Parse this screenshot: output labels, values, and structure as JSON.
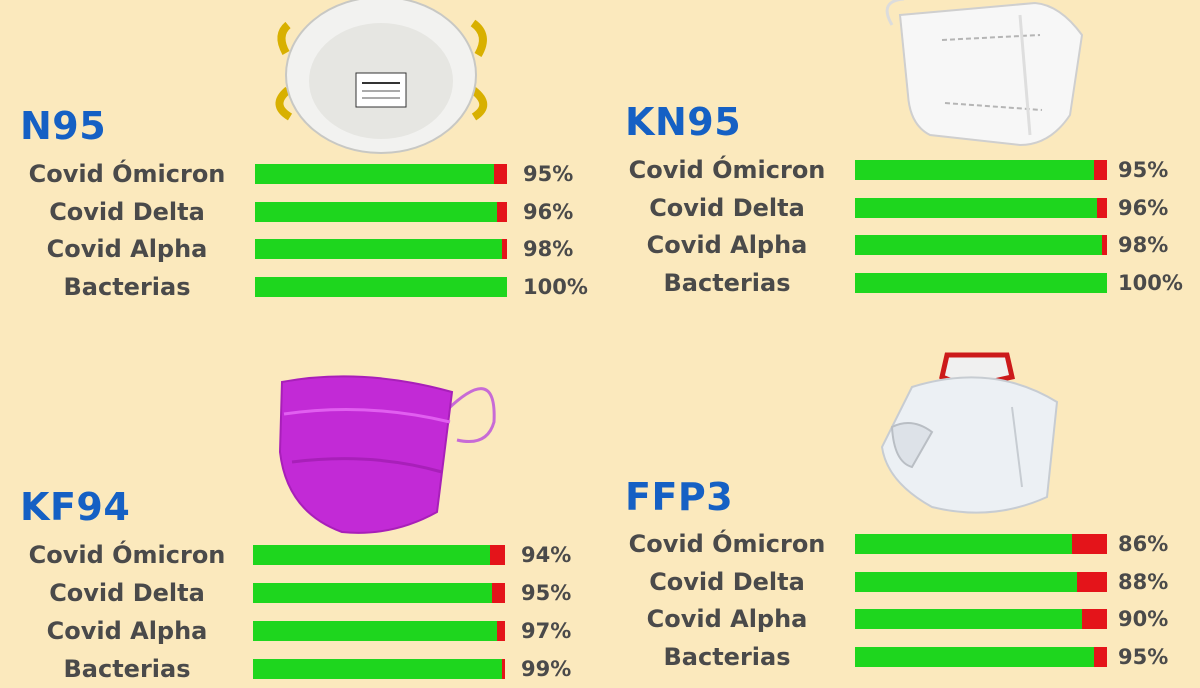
{
  "chart_data": [
    {
      "type": "bar",
      "title": "N95",
      "categories": [
        "Covid Ómicron",
        "Covid Delta",
        "Covid Alpha",
        "Bacterias"
      ],
      "values": [
        95,
        96,
        98,
        100
      ],
      "value_labels": [
        "95%",
        "96%",
        "98%",
        "100%"
      ],
      "ylim": [
        0,
        100
      ],
      "colors": {
        "fill": "#1ed61e",
        "remainder": "#e4141a"
      }
    },
    {
      "type": "bar",
      "title": "KN95",
      "categories": [
        "Covid Ómicron",
        "Covid Delta",
        "Covid Alpha",
        "Bacterias"
      ],
      "values": [
        95,
        96,
        98,
        100
      ],
      "value_labels": [
        "95%",
        "96%",
        "98%",
        "100%"
      ],
      "ylim": [
        0,
        100
      ],
      "colors": {
        "fill": "#1ed61e",
        "remainder": "#e4141a"
      }
    },
    {
      "type": "bar",
      "title": "KF94",
      "categories": [
        "Covid Ómicron",
        "Covid Delta",
        "Covid Alpha",
        "Bacterias"
      ],
      "values": [
        94,
        95,
        97,
        99
      ],
      "value_labels": [
        "94%",
        "95%",
        "97%",
        "99%"
      ],
      "ylim": [
        0,
        100
      ],
      "colors": {
        "fill": "#1ed61e",
        "remainder": "#e4141a"
      }
    },
    {
      "type": "bar",
      "title": "FFP3",
      "categories": [
        "Covid Ómicron",
        "Covid Delta",
        "Covid Alpha",
        "Bacterias"
      ],
      "values": [
        86,
        88,
        90,
        95
      ],
      "value_labels": [
        "86%",
        "88%",
        "90%",
        "95%"
      ],
      "ylim": [
        0,
        100
      ],
      "colors": {
        "fill": "#1ed61e",
        "remainder": "#e4141a"
      }
    }
  ],
  "theme": {
    "background": "#fbe9bd",
    "title_color": "#1560c4",
    "text_color": "#4a4a4a"
  },
  "illustrations": [
    "n95-mask",
    "kn95-mask",
    "kf94-mask",
    "ffp3-mask"
  ]
}
